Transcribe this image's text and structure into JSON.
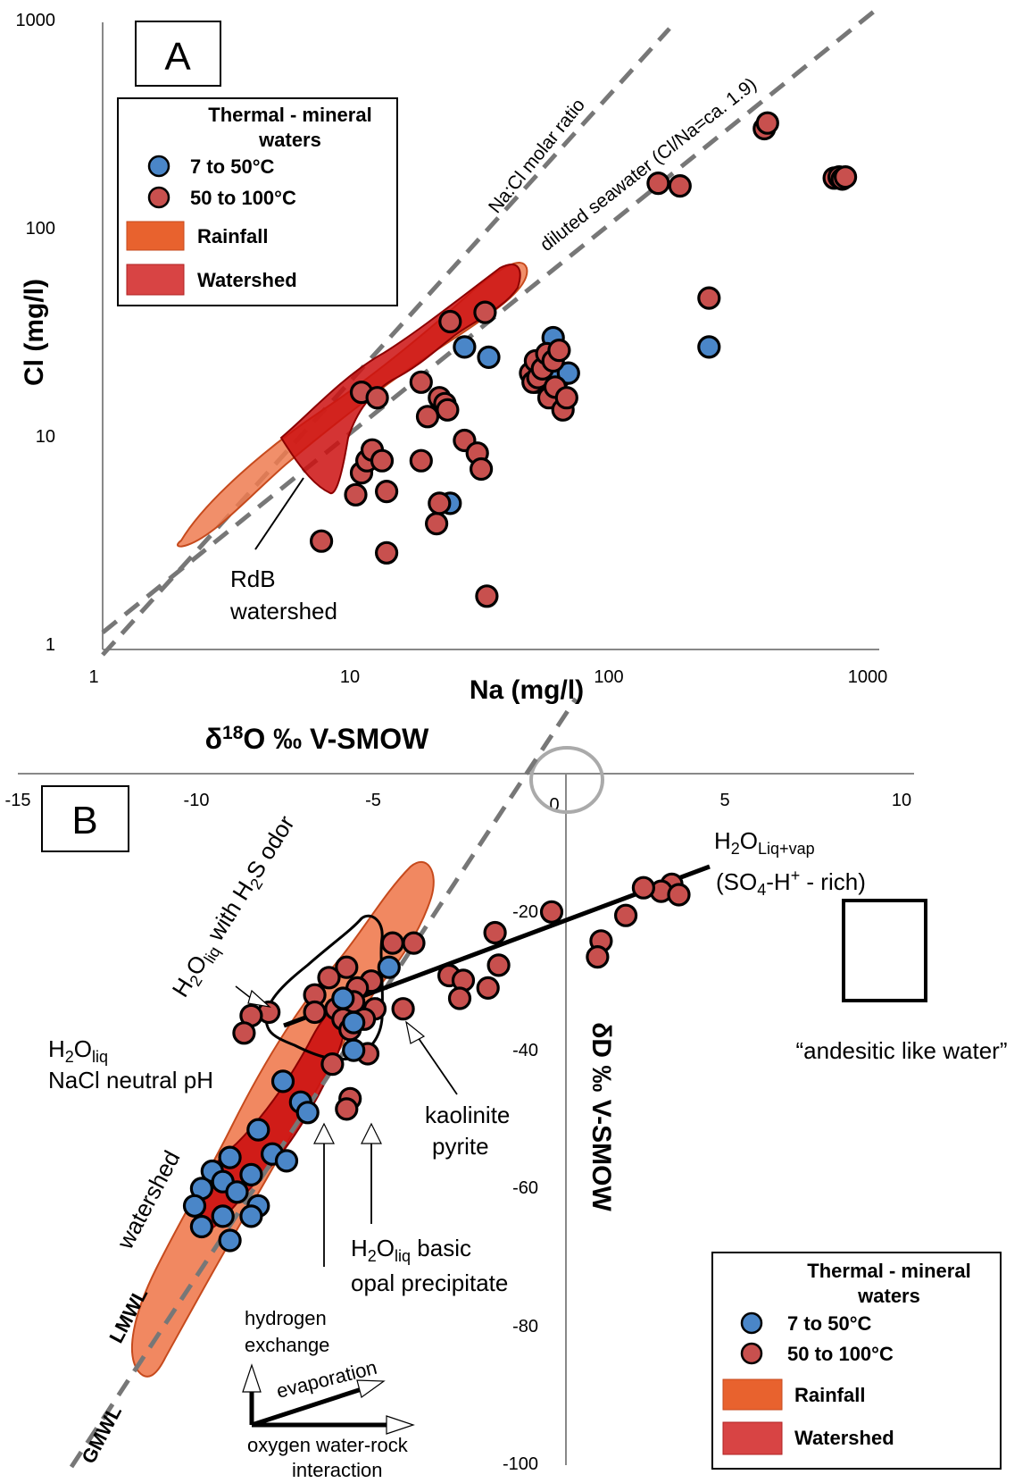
{
  "colors": {
    "blue_point": "#4a86c8",
    "red_point": "#c8504e",
    "rainfall": "#e8622e",
    "rainfall_fill": "#ef7b50",
    "watershed": "#cc1111",
    "watershed_legend": "#d84444",
    "axis": "#888888",
    "dashed": "#777777"
  },
  "chart_data": [
    {
      "type": "scatter",
      "panel_label": "A",
      "xscale": "log",
      "yscale": "log",
      "xlabel": "Na (mg/l)",
      "ylabel": "Cl (mg/l)",
      "xlim": [
        1,
        1000
      ],
      "ylim": [
        1,
        1000
      ],
      "xticks": [
        "1",
        "10",
        "100",
        "1000"
      ],
      "yticks": [
        "1",
        "10",
        "100",
        "1000"
      ],
      "legend": {
        "title": "Thermal - mineral waters",
        "entries": [
          "7 to 50°C",
          "50 to 100°C",
          "Rainfall",
          "Watershed"
        ]
      },
      "lines": [
        {
          "label": "Na:Cl molar ratio",
          "style": "dashed"
        },
        {
          "label": "diluted seawater (Cl/Na=ca. 1.9)",
          "style": "dashed"
        }
      ],
      "annotations": [
        "RdB",
        "watershed"
      ],
      "series": [
        {
          "name": "7 to 50°C",
          "points": [
            [
              25,
              28
            ],
            [
              31,
              25
            ],
            [
              22,
              5
            ],
            [
              47,
              19
            ],
            [
              55,
              31
            ],
            [
              58,
              20
            ],
            [
              63,
              21
            ],
            [
              220,
              28
            ]
          ]
        },
        {
          "name": "50 to 100°C",
          "points": [
            [
              7,
              3.3
            ],
            [
              9.5,
              5.5
            ],
            [
              10,
              7
            ],
            [
              10,
              17
            ],
            [
              10.5,
              8
            ],
            [
              11,
              9
            ],
            [
              11.5,
              16
            ],
            [
              12,
              8
            ],
            [
              12.5,
              5.7
            ],
            [
              12.5,
              2.9
            ],
            [
              17,
              19
            ],
            [
              17,
              8
            ],
            [
              18,
              13
            ],
            [
              19.5,
              4
            ],
            [
              20,
              5
            ],
            [
              20,
              16
            ],
            [
              21,
              15
            ],
            [
              21.5,
              14
            ],
            [
              22,
              37
            ],
            [
              25,
              10
            ],
            [
              28,
              8.7
            ],
            [
              29,
              7.3
            ],
            [
              30,
              41
            ],
            [
              30.5,
              1.8
            ],
            [
              45,
              21
            ],
            [
              46,
              19
            ],
            [
              47,
              24
            ],
            [
              48,
              20
            ],
            [
              50,
              22
            ],
            [
              52,
              26
            ],
            [
              53,
              16
            ],
            [
              55,
              24
            ],
            [
              56,
              18
            ],
            [
              58,
              27
            ],
            [
              60,
              14
            ],
            [
              62,
              16
            ],
            [
              140,
              170
            ],
            [
              170,
              165
            ],
            [
              220,
              48
            ],
            [
              360,
              310
            ],
            [
              370,
              330
            ],
            [
              670,
              180
            ],
            [
              700,
              182
            ],
            [
              720,
              178
            ],
            [
              740,
              182
            ]
          ]
        }
      ]
    },
    {
      "type": "scatter",
      "panel_label": "B",
      "xlabel": "δ18O ‰ V-SMOW",
      "ylabel": "δD ‰ V-SMOW",
      "xlim": [
        -15,
        10
      ],
      "ylim": [
        -100,
        0
      ],
      "xticks": [
        "-15",
        "-10",
        "-5",
        "0",
        "5",
        "10"
      ],
      "yticks": [
        "-20",
        "-40",
        "-60",
        "-80",
        "-100"
      ],
      "legend": {
        "title": "Thermal - mineral waters",
        "entries": [
          "7 to 50°C",
          "50 to 100°C",
          "Rainfall",
          "Watershed"
        ]
      },
      "annotations": {
        "h2o_liq_vap": "H2OLiq+vap",
        "so4_rich": "(SO4-H+ - rich)",
        "andesitic": "“andesitic like water”",
        "h2s": "H2Oliq with H2S odor",
        "h2o_liq": "H2Oliq",
        "nacl": "NaCl neutral pH",
        "kaolinite": "kaolinite",
        "pyrite": "pyrite",
        "h2o_basic": "H2Oliq basic",
        "opal": "opal precipitate",
        "watershed": "watershed",
        "lmwl": "LMWL",
        "gmwl": "GMWL",
        "hydrogen1": "hydrogen",
        "hydrogen2": "exchange",
        "evaporation": "evaporation",
        "oxygen1": "oxygen water-rock",
        "oxygen2": "interaction"
      },
      "series": [
        {
          "name": "7 to 50°C",
          "points": [
            [
              -4.5,
              -28
            ],
            [
              -5.8,
              -32.5
            ],
            [
              -5.5,
              -36
            ],
            [
              -5.5,
              -40
            ],
            [
              -7.5,
              -44.5
            ],
            [
              -7.0,
              -47.5
            ],
            [
              -6.8,
              -49
            ],
            [
              -8.2,
              -51.5
            ],
            [
              -7.8,
              -55
            ],
            [
              -7.4,
              -56
            ],
            [
              -9.0,
              -55.5
            ],
            [
              -9.5,
              -57.5
            ],
            [
              -8.4,
              -58
            ],
            [
              -9.2,
              -59
            ],
            [
              -9.8,
              -60
            ],
            [
              -8.8,
              -60.5
            ],
            [
              -8.2,
              -62.5
            ],
            [
              -10.0,
              -62.5
            ],
            [
              -9.2,
              -64
            ],
            [
              -8.4,
              -64
            ],
            [
              -9.8,
              -65.5
            ],
            [
              -9.0,
              -67.5
            ]
          ]
        },
        {
          "name": "50 to 100°C",
          "points": [
            [
              3.5,
              -16
            ],
            [
              3.2,
              -17
            ],
            [
              3.7,
              -17.5
            ],
            [
              2.7,
              -16.5
            ],
            [
              2.2,
              -20.5
            ],
            [
              0.1,
              -20
            ],
            [
              -1.5,
              -23
            ],
            [
              -3.8,
              -24.5
            ],
            [
              -4.4,
              -24.5
            ],
            [
              1.5,
              -24.2
            ],
            [
              1.4,
              -26.5
            ],
            [
              -2.8,
              -29.2
            ],
            [
              -1.4,
              -27.7
            ],
            [
              -2.4,
              -29.9
            ],
            [
              -1.7,
              -31
            ],
            [
              -2.5,
              -32.5
            ],
            [
              -5.7,
              -28
            ],
            [
              -6.2,
              -29.5
            ],
            [
              -5.0,
              -30
            ],
            [
              -5.4,
              -31
            ],
            [
              -6.6,
              -32
            ],
            [
              -5.5,
              -33
            ],
            [
              -4.9,
              -34
            ],
            [
              -4.1,
              -34
            ],
            [
              -6.0,
              -34
            ],
            [
              -6.6,
              -34.5
            ],
            [
              -5.8,
              -35.5
            ],
            [
              -5.2,
              -35.5
            ],
            [
              -5.6,
              -37
            ],
            [
              -7.9,
              -34.5
            ],
            [
              -8.4,
              -35
            ],
            [
              -8.6,
              -37.5
            ],
            [
              -5.1,
              -40.5
            ],
            [
              -6.1,
              -42
            ],
            [
              -5.6,
              -47
            ],
            [
              -5.7,
              -48.5
            ]
          ]
        }
      ]
    }
  ]
}
